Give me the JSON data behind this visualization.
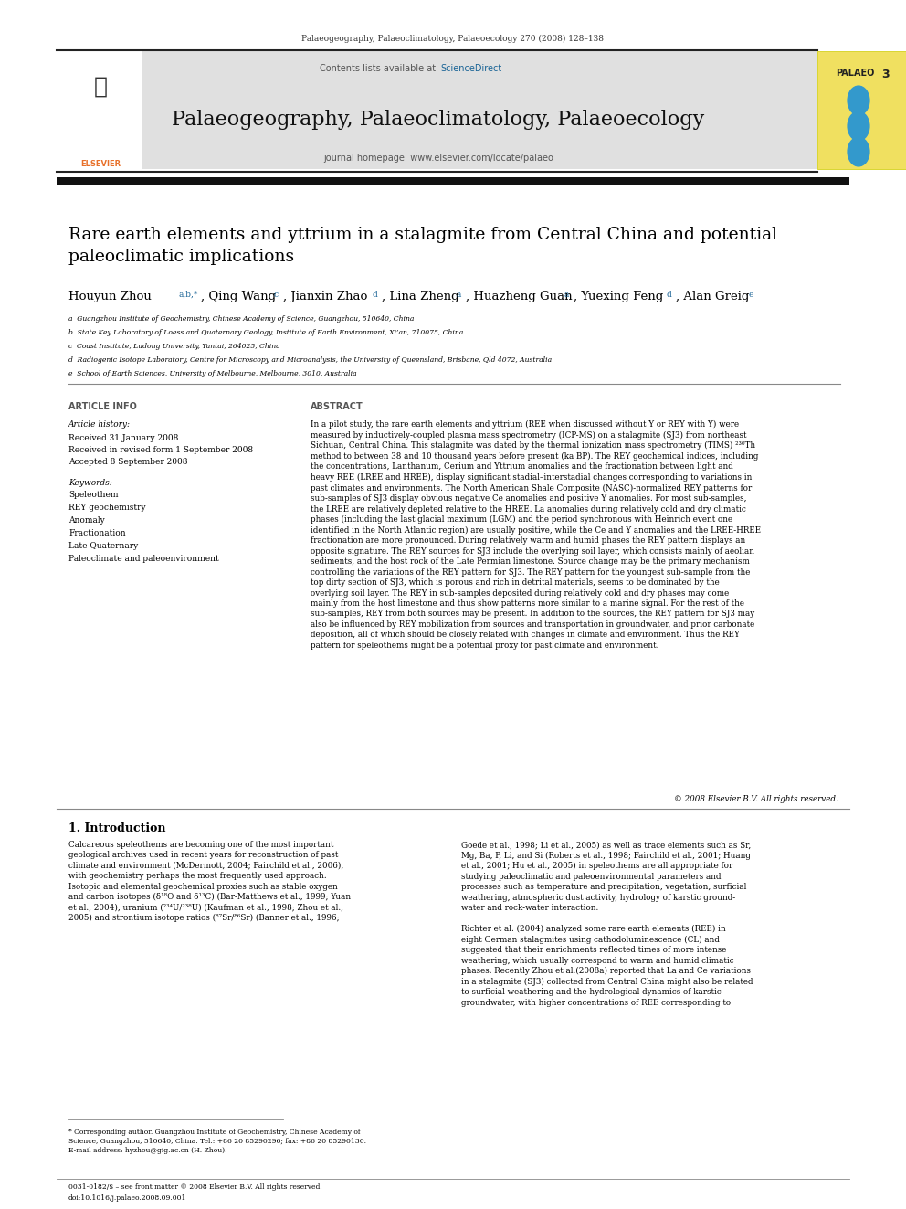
{
  "page_width": 9.92,
  "page_height": 13.23,
  "bg_color": "#ffffff",
  "journal_header_text": "Palaeogeography, Palaeoclimatology, Palaeoecology 270 (2008) 128–138",
  "journal_header_color": "#000000",
  "journal_header_fontsize": 7.5,
  "banner_bg": "#e8e8e8",
  "banner_text": "Palaeogeography, Palaeoclimatology, Palaeoecology",
  "banner_fontsize": 18,
  "banner_subtext": "journal homepage: www.elsevier.com/locate/palaeo",
  "banner_subtext_fontsize": 8,
  "contents_text": "Contents lists available at ",
  "science_direct_text": "ScienceDirect",
  "science_direct_color": "#1a6496",
  "palaeo_box_bg": "#f5e642",
  "palaeo_box_text": "PALAEO",
  "palaeo_box_num": "3",
  "title_text": "Rare earth elements and yttrium in a stalagmite from Central China and potential\npaleoclimatic implications",
  "title_fontsize": 17,
  "authors_text": "Houyun Zhou",
  "authors_superscript": "a,b,*",
  "author2": ", Qing Wang",
  "author2_sup": "c",
  "author3": ", Jianxin Zhao",
  "author3_sup": "d",
  "author4": ", Lina Zheng",
  "author4_sup": "a",
  "author5": ", Huazheng Guan",
  "author5_sup": "a",
  "author6": ", Yuexing Feng",
  "author6_sup": "d",
  "author7": ", Alan Greig",
  "author7_sup": "e",
  "authors_fontsize": 12,
  "affil_a": "a  Guangzhou Institute of Geochemistry, Chinese Academy of Science, Guangzhou, 510640, China",
  "affil_b": "b  State Key Laboratory of Loess and Quaternary Geology, Institute of Earth Environment, Xi’an, 710075, China",
  "affil_c": "c  Coast Institute, Ludong University, Yantai, 264025, China",
  "affil_d": "d  Radiogenic Isotope Laboratory, Centre for Microscopy and Microanalysis, the University of Queensland, Brisbane, Qld 4072, Australia",
  "affil_e": "e  School of Earth Sciences, University of Melbourne, Melbourne, 3010, Australia",
  "affil_fontsize": 6.5,
  "article_info_header": "ARTICLE INFO",
  "article_info_header_fontsize": 8,
  "article_history_label": "Article history:",
  "received": "Received 31 January 2008",
  "revised": "Received in revised form 1 September 2008",
  "accepted": "Accepted 8 September 2008",
  "keywords_label": "Keywords:",
  "kw1": "Speleothem",
  "kw2": "REY geochemistry",
  "kw3": "Anomaly",
  "kw4": "Fractionation",
  "kw5": "Late Quaternary",
  "kw6": "Paleoclimate and paleoenvironment",
  "abstract_header": "ABSTRACT",
  "abstract_text": "In a pilot study, the rare earth elements and yttrium (REE when discussed without Y or REY with Y) were\nmeasured by inductively-coupled plasma mass spectrometry (ICP-MS) on a stalagmite (SJ3) from northeast\nSichuan, Central China. This stalagmite was dated by the thermal ionization mass spectrometry (TIMS) ²³⁰Th\nmethod to between 38 and 10 thousand years before present (ka BP). The REY geochemical indices, including\nthe concentrations, Lanthanum, Cerium and Yttrium anomalies and the fractionation between light and\nheavy REE (LREE and HREE), display significant stadial–interstadial changes corresponding to variations in\npast climates and environments. The North American Shale Composite (NASC)-normalized REY patterns for\nsub-samples of SJ3 display obvious negative Ce anomalies and positive Y anomalies. For most sub-samples,\nthe LREE are relatively depleted relative to the HREE. La anomalies during relatively cold and dry climatic\nphases (including the last glacial maximum (LGM) and the period synchronous with Heinrich event one\nidentified in the North Atlantic region) are usually positive, while the Ce and Y anomalies and the LREE-HREE\nfractionation are more pronounced. During relatively warm and humid phases the REY pattern displays an\nopposite signature. The REY sources for SJ3 include the overlying soil layer, which consists mainly of aeolian\nsediments, and the host rock of the Late Permian limestone. Source change may be the primary mechanism\ncontrolling the variations of the REY pattern for SJ3. The REY pattern for the youngest sub-sample from the\ntop dirty section of SJ3, which is porous and rich in detrital materials, seems to be dominated by the\noverlying soil layer. The REY in sub-samples deposited during relatively cold and dry phases may come\nmainly from the host limestone and thus show patterns more similar to a marine signal. For the rest of the\nsub-samples, REY from both sources may be present. In addition to the sources, the REY pattern for SJ3 may\nalso be influenced by REY mobilization from sources and transportation in groundwater, and prior carbonate\ndeposition, all of which should be closely related with changes in climate and environment. Thus the REY\npattern for speleothems might be a potential proxy for past climate and environment.",
  "abstract_fontsize": 7.5,
  "copyright_text": "© 2008 Elsevier B.V. All rights reserved.",
  "intro_header": "1. Introduction",
  "intro_text1": "Calcareous speleothems are becoming one of the most important\ngeological archives used in recent years for reconstruction of past\nclimate and environment (McDermott, 2004; Fairchild et al., 2006),\nwith geochemistry perhaps the most frequently used approach.\nIsotopic and elemental geochemical proxies such as stable oxygen\nand carbon isotopes (δ¹⁸O and δ¹³C) (Bar-Matthews et al., 1999; Yuan\net al., 2004), uranium (²³⁴U/²³⁸U) (Kaufman et al., 1998; Zhou et al.,\n2005) and strontium isotope ratios (⁸⁷Sr/⁸⁶Sr) (Banner et al., 1996;",
  "intro_text2": "Goede et al., 1998; Li et al., 2005) as well as trace elements such as Sr,\nMg, Ba, P, Li, and Si (Roberts et al., 1998; Fairchild et al., 2001; Huang\net al., 2001; Hu et al., 2005) in speleothems are all appropriate for\nstudying paleoclimatic and paleoenvironmental parameters and\nprocesses such as temperature and precipitation, vegetation, surficial\nweathering, atmospheric dust activity, hydrology of karstic ground-\nwater and rock-water interaction.",
  "intro_text3": "Richter et al. (2004) analyzed some rare earth elements (REE) in\neight German stalagmites using cathodoluminescence (CL) and\nsuggested that their enrichments reflected times of more intense\nweathering, which usually correspond to warm and humid climatic\nphases. Recently Zhou et al.(2008a) reported that La and Ce variations\nin a stalagmite (SJ3) collected from Central China might also be related\nto surficial weathering and the hydrological dynamics of karstic\ngroundwater, with higher concentrations of REE corresponding to",
  "footnote_text": "* Corresponding author. Guangzhou Institute of Geochemistry, Chinese Academy of\nScience, Guangzhou, 510640, China. Tel.: +86 20 85290296; fax: +86 20 85290130.\nE-mail address: hyzhou@gig.ac.cn (H. Zhou).",
  "footer_text1": "0031-0182/$ – see front matter © 2008 Elsevier B.V. All rights reserved.",
  "footer_text2": "doi:10.1016/j.palaeo.2008.09.001",
  "intro_fontsize": 7.5
}
